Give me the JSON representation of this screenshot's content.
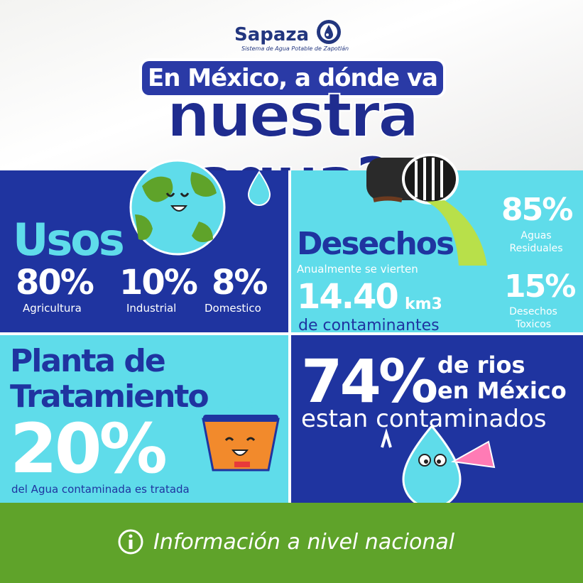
{
  "header": {
    "logo_name": "Sapaza",
    "logo_subtitle": "Sistema de Agua Potable de Zapotlán",
    "title_line1": "En México, a dónde va",
    "title_line2": "nuestra agua?"
  },
  "usos": {
    "title": "Usos",
    "stats": [
      {
        "value": "80%",
        "label": "Agricultura"
      },
      {
        "value": "10%",
        "label": "Industrial"
      },
      {
        "value": "8%",
        "label": "Domestico"
      }
    ]
  },
  "desechos": {
    "title": "Desechos",
    "subtitle": "Anualmente se vierten",
    "amount": "14.40",
    "unit": "km3",
    "amount_caption": "de contaminantes",
    "right": [
      {
        "value": "85%",
        "label_l1": "Aguas",
        "label_l2": "Residuales"
      },
      {
        "value": "15%",
        "label_l1": "Desechos",
        "label_l2": "Toxicos"
      }
    ]
  },
  "planta": {
    "title_l1": "Planta de",
    "title_l2": "Tratamiento",
    "value": "20%",
    "caption": "del Agua contaminada es tratada"
  },
  "rios": {
    "value": "74%",
    "line1": "de rios",
    "line2": "en México",
    "line3": "estan contaminados"
  },
  "footer": {
    "text": "Información a nivel nacional"
  },
  "colors": {
    "navy": "#1f34a0",
    "cyan": "#5fdcea",
    "green": "#5fa32a"
  }
}
